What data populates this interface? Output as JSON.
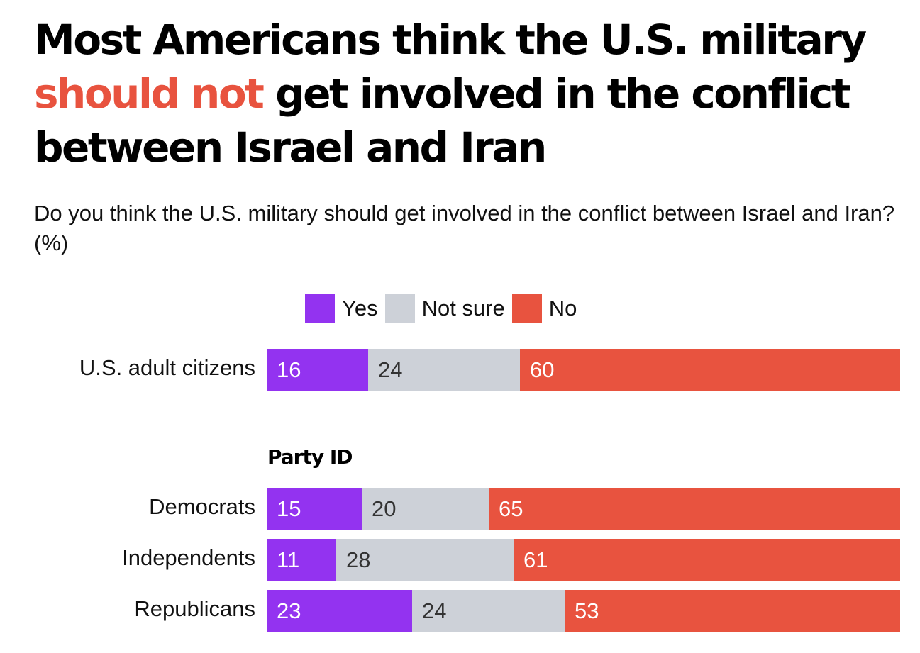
{
  "title": {
    "before": "Most Americans think the U.S. military ",
    "highlight": "should not",
    "after": " get involved in the conflict between Israel and Iran"
  },
  "subtitle": "Do you think the U.S. military should get involved in the conflict between Israel and Iran? (%)",
  "colors": {
    "yes": "#9333f0",
    "not_sure": "#cdd1d8",
    "no": "#e8533f",
    "highlight": "#e8533f",
    "label_light": "#ffffff",
    "label_dark": "#333333"
  },
  "chart_data": {
    "type": "bar",
    "orientation": "horizontal",
    "stacked": true,
    "title": "Most Americans think the U.S. military should not get involved in the conflict between Israel and Iran",
    "subtitle": "Do you think the U.S. military should get involved in the conflict between Israel and Iran? (%)",
    "legend": {
      "placement": "top-center",
      "entries": [
        "Yes",
        "Not sure",
        "No"
      ]
    },
    "xlim": [
      0,
      100
    ],
    "grid": false,
    "categories": [
      "U.S. adult citizens",
      "Democrats",
      "Independents",
      "Republicans"
    ],
    "groups": [
      {
        "label": "",
        "categories": [
          "U.S. adult citizens"
        ]
      },
      {
        "label": "Party ID",
        "categories": [
          "Democrats",
          "Independents",
          "Republicans"
        ]
      }
    ],
    "series": [
      {
        "name": "Yes",
        "key": "yes",
        "values": [
          16,
          15,
          11,
          23
        ]
      },
      {
        "name": "Not sure",
        "key": "not_sure",
        "values": [
          24,
          20,
          28,
          24
        ]
      },
      {
        "name": "No",
        "key": "no",
        "values": [
          60,
          65,
          61,
          53
        ]
      }
    ]
  }
}
